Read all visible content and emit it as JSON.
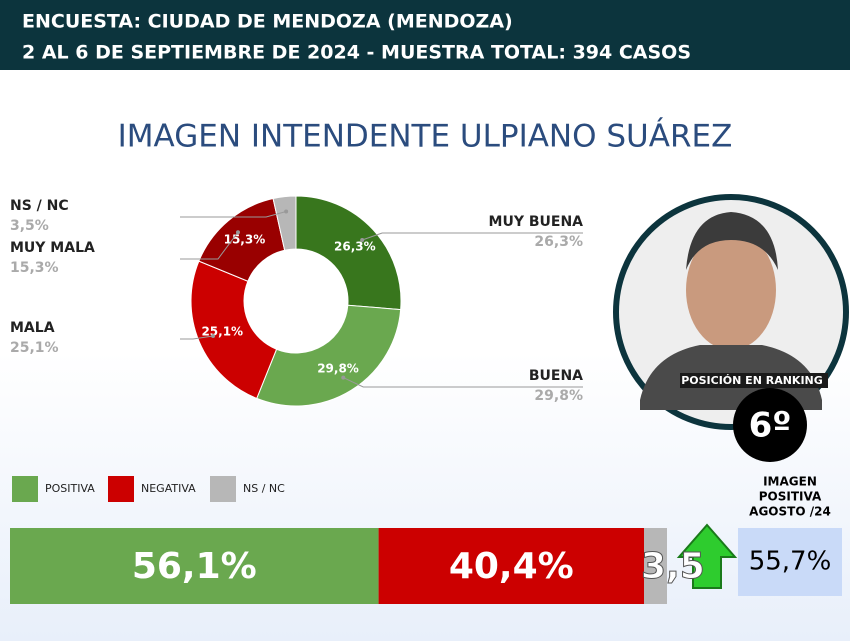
{
  "header": {
    "line1": "ENCUESTA: CIUDAD DE MENDOZA (MENDOZA)",
    "line2": "2 AL 6 DE SEPTIEMBRE DE 2024 - MUESTRA TOTAL: 394 CASOS"
  },
  "chart_data": [
    {
      "type": "pie",
      "donut": true,
      "title": "IMAGEN INTENDENTE ULPIANO SUÁREZ",
      "categories": [
        "MUY BUENA",
        "BUENA",
        "MALA",
        "MUY MALA",
        "NS / NC"
      ],
      "values": [
        26.3,
        29.8,
        25.1,
        15.3,
        3.5
      ],
      "value_labels": [
        "26,3%",
        "29,8%",
        "25,1%",
        "15,3%",
        "3,5%"
      ],
      "colors": [
        "#38761d",
        "#6aa84f",
        "#cc0000",
        "#990000",
        "#b7b7b7"
      ]
    },
    {
      "type": "stacked-bar",
      "series": [
        {
          "name": "POSITIVA",
          "color": "#6aa84f",
          "values": [
            56.1
          ],
          "value_labels": [
            "56,1%"
          ]
        },
        {
          "name": "NEGATIVA",
          "color": "#cc0000",
          "values": [
            40.4
          ],
          "value_labels": [
            "40,4%"
          ]
        },
        {
          "name": "NS / NC",
          "color": "#b7b7b7",
          "values": [
            3.5
          ],
          "value_labels": [
            "3,5"
          ]
        }
      ]
    }
  ],
  "ranking": {
    "label": "POSICIÓN EN RANKING",
    "value": "6º"
  },
  "comparison": {
    "title": [
      "IMAGEN",
      "POSITIVA",
      "AGOSTO /24"
    ],
    "value": "55,7%"
  }
}
